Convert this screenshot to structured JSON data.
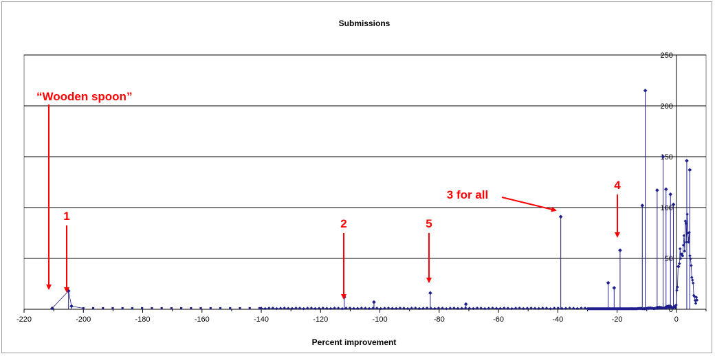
{
  "chart_data": {
    "type": "line",
    "title": "Submissions",
    "xlabel": "Percent improvement",
    "ylabel": "",
    "xlim": [
      -220,
      10
    ],
    "ylim": [
      0,
      250
    ],
    "x_ticks": [
      "-220",
      "-200",
      "-180",
      "-160",
      "-140",
      "-120",
      "-100",
      "-80",
      "-60",
      "-40",
      "-20",
      "0"
    ],
    "y_ticks": [
      "0",
      "50",
      "100",
      "150",
      "200",
      "250"
    ],
    "grid": "horizontal",
    "legend": "none",
    "series_color": "#1f1f8c",
    "annotation_color": "#ff0000",
    "spikes": [
      {
        "x": -210.5,
        "y": 1
      },
      {
        "x": -205,
        "y": 18
      },
      {
        "x": -204,
        "y": 3
      },
      {
        "x": -112,
        "y": 12
      },
      {
        "x": -102,
        "y": 7
      },
      {
        "x": -83,
        "y": 16
      },
      {
        "x": -71,
        "y": 5
      },
      {
        "x": -39,
        "y": 91
      },
      {
        "x": -23,
        "y": 26
      },
      {
        "x": -21,
        "y": 21
      },
      {
        "x": -19,
        "y": 58
      },
      {
        "x": -11.5,
        "y": 102
      },
      {
        "x": -10.5,
        "y": 215
      },
      {
        "x": -6.5,
        "y": 117
      },
      {
        "x": -4.5,
        "y": 150
      },
      {
        "x": -3.5,
        "y": 118
      },
      {
        "x": -2,
        "y": 113
      },
      {
        "x": -1,
        "y": 103
      },
      {
        "x": 3.5,
        "y": 146
      },
      {
        "x": 4.5,
        "y": 137
      }
    ],
    "annotations": [
      {
        "text": "“Wooden spoon”",
        "x": -210.5,
        "y": 1
      },
      {
        "text": "1",
        "x": -205,
        "y": 18
      },
      {
        "text": "2",
        "x": -112,
        "y": 12
      },
      {
        "text": "5",
        "x": -83,
        "y": 16
      },
      {
        "text": "3 for all",
        "x": -39,
        "y": 91
      },
      {
        "text": "4",
        "x": -19,
        "y": 58
      }
    ]
  }
}
